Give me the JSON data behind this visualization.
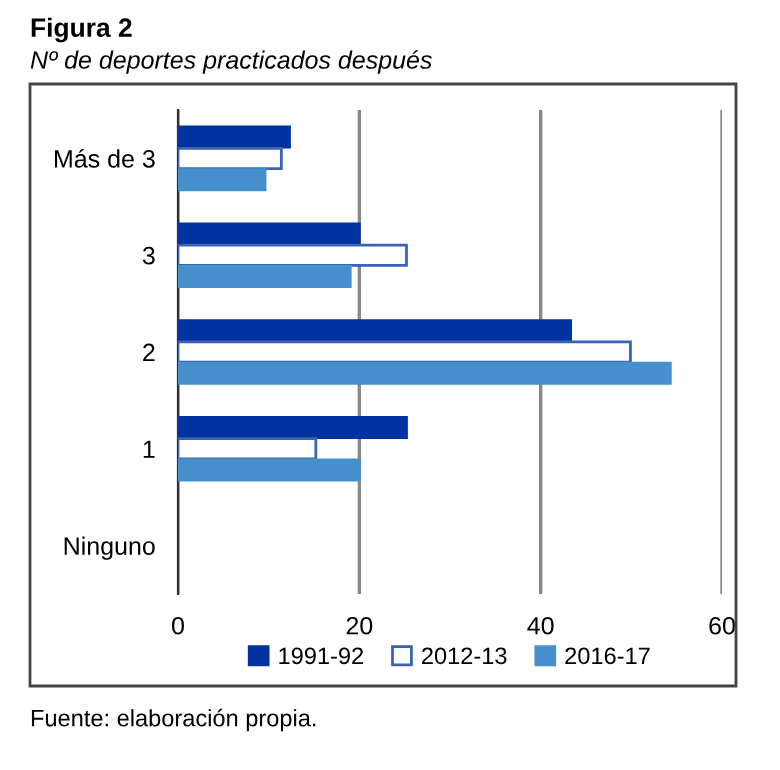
{
  "chart_data": {
    "type": "bar",
    "orientation": "horizontal",
    "title": "Figura 2",
    "subtitle": "Nº de deportes practicados después",
    "categories": [
      "Más de 3",
      "3",
      "2",
      "1",
      "Ninguno"
    ],
    "series": [
      {
        "name": "1991-92",
        "color": "#0033a0",
        "values": [
          12.3,
          20,
          43.3,
          25.2,
          0
        ]
      },
      {
        "name": "2012-13",
        "color": "#ffffff",
        "values": [
          11.4,
          25.2,
          49.9,
          15.2,
          0
        ]
      },
      {
        "name": "2016-17",
        "color": "#4590cc",
        "values": [
          9.6,
          19,
          54.3,
          20,
          0
        ]
      }
    ],
    "xlim": [
      0,
      60
    ],
    "xticks": [
      0,
      20,
      40,
      60
    ],
    "grid": "x",
    "legend": "bottom",
    "annotations": [
      "Fuente: elaboración propia."
    ]
  }
}
